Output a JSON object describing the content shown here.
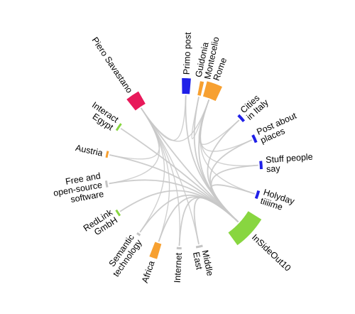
{
  "colors": {
    "blue": "#2020e8",
    "orange": "#f7a030",
    "green": "#88d640",
    "grey": "#c4c4c4",
    "pink": "#e8195a",
    "link": "#c8c8c8"
  },
  "nodes": [
    {
      "id": "guidonia",
      "lines": [
        "Guidonia",
        "Montecelio"
      ],
      "color": "orange"
    },
    {
      "id": "primo-post",
      "lines": [
        "Primo post"
      ],
      "color": "blue"
    },
    {
      "id": "rome",
      "lines": [
        "Rome"
      ],
      "color": "orange"
    },
    {
      "id": "cities-italy",
      "lines": [
        "Cities",
        "in Italy"
      ],
      "color": "blue"
    },
    {
      "id": "post-places",
      "lines": [
        "Post about",
        "places"
      ],
      "color": "blue"
    },
    {
      "id": "stuff-people",
      "lines": [
        "Stuff people",
        "say"
      ],
      "color": "blue"
    },
    {
      "id": "holyday",
      "lines": [
        "Holyday",
        "tiiiime"
      ],
      "color": "blue"
    },
    {
      "id": "insideout",
      "lines": [
        "InSideOut10"
      ],
      "color": "green"
    },
    {
      "id": "middle-east",
      "lines": [
        "Middle",
        "East"
      ],
      "color": "grey"
    },
    {
      "id": "internet",
      "lines": [
        "Internet"
      ],
      "color": "grey"
    },
    {
      "id": "africa",
      "lines": [
        "Africa"
      ],
      "color": "orange"
    },
    {
      "id": "semantic",
      "lines": [
        "Semantic",
        "technology"
      ],
      "color": "grey"
    },
    {
      "id": "redlink",
      "lines": [
        "RedLink",
        "GmbH"
      ],
      "color": "green"
    },
    {
      "id": "foss",
      "lines": [
        "Free and",
        "open-source",
        "software"
      ],
      "color": "grey"
    },
    {
      "id": "austria",
      "lines": [
        "Austria"
      ],
      "color": "orange"
    },
    {
      "id": "interact",
      "lines": [
        "Interact",
        "Egypt"
      ],
      "color": "green"
    },
    {
      "id": "piero",
      "lines": [
        "Piero Savastano"
      ],
      "color": "pink"
    }
  ],
  "links": [
    [
      "guidonia",
      "rome"
    ],
    [
      "guidonia",
      "insideout"
    ],
    [
      "primo-post",
      "insideout"
    ],
    [
      "primo-post",
      "piero"
    ],
    [
      "rome",
      "cities-italy"
    ],
    [
      "rome",
      "post-places"
    ],
    [
      "rome",
      "stuff-people"
    ],
    [
      "rome",
      "holyday"
    ],
    [
      "rome",
      "insideout"
    ],
    [
      "rome",
      "piero"
    ],
    [
      "cities-italy",
      "insideout"
    ],
    [
      "post-places",
      "insideout"
    ],
    [
      "stuff-people",
      "insideout"
    ],
    [
      "holyday",
      "insideout"
    ],
    [
      "insideout",
      "middle-east"
    ],
    [
      "insideout",
      "internet"
    ],
    [
      "insideout",
      "africa"
    ],
    [
      "insideout",
      "semantic"
    ],
    [
      "insideout",
      "redlink"
    ],
    [
      "insideout",
      "foss"
    ],
    [
      "insideout",
      "austria"
    ],
    [
      "insideout",
      "interact"
    ],
    [
      "insideout",
      "piero"
    ],
    [
      "piero",
      "africa"
    ],
    [
      "piero",
      "internet"
    ],
    [
      "piero",
      "middle-east"
    ],
    [
      "piero",
      "semantic"
    ],
    [
      "piero",
      "foss"
    ],
    [
      "piero",
      "austria"
    ]
  ]
}
